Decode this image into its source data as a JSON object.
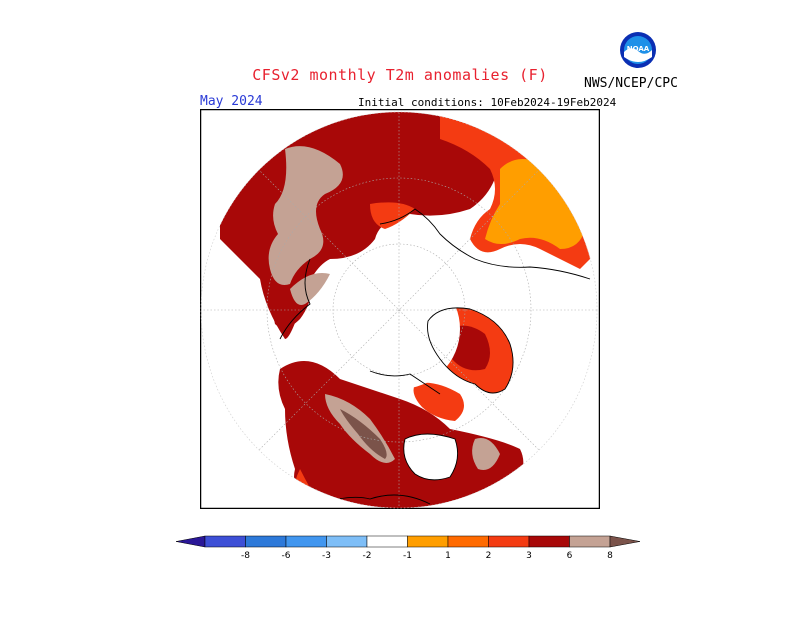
{
  "header": {
    "title": "CFSv2 monthly T2m anomalies (F)",
    "month": "May 2024",
    "initial_conditions": "Initial conditions: 10Feb2024-19Feb2024",
    "organization": "NWS/NCEP/CPC",
    "logo_text": "NOAA"
  },
  "map": {
    "projection": "north polar stereographic",
    "colors": {
      "frame": "#000000",
      "graticule": "#aaaaaa",
      "coast": "#000000"
    }
  },
  "legend": {
    "bins": [
      {
        "color": "#2a1797"
      },
      {
        "color": "#3d4fd6"
      },
      {
        "color": "#2d79d9"
      },
      {
        "color": "#4196ef"
      },
      {
        "color": "#7ebef7"
      },
      {
        "color": "#ffffff"
      },
      {
        "color": "#ff9e00"
      },
      {
        "color": "#ff6a00"
      },
      {
        "color": "#f43b12"
      },
      {
        "color": "#a80808"
      },
      {
        "color": "#c4a294"
      },
      {
        "color": "#7b534a"
      }
    ],
    "tick_labels": [
      "-8",
      "-6",
      "-3",
      "-2",
      "-1",
      "1",
      "2",
      "3",
      "6",
      "8"
    ]
  }
}
